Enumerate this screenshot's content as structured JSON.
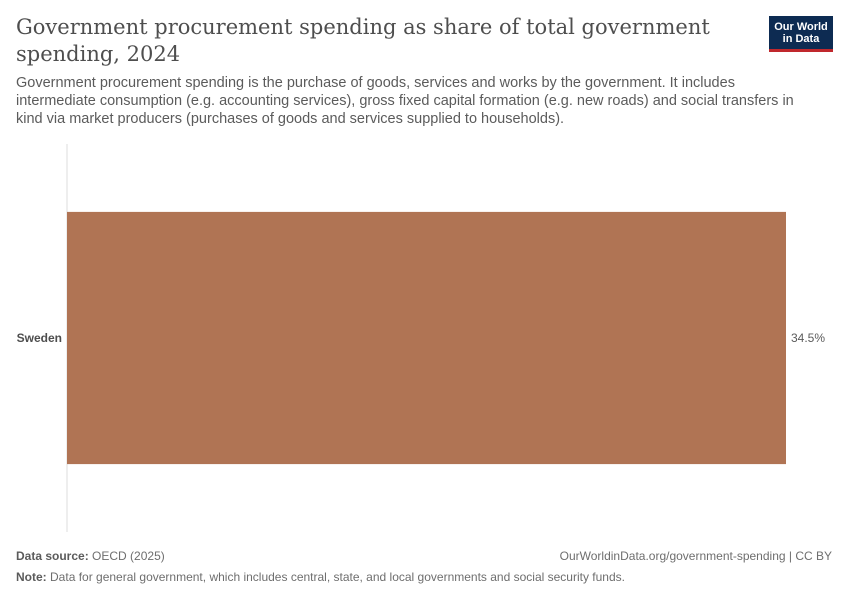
{
  "title": "Government procurement spending as share of total government spending, 2024",
  "subtitle": "Government procurement spending is the purchase of goods, services and works by the government. It includes intermediate consumption (e.g. accounting services), gross fixed capital formation (e.g. new roads) and social transfers in kind via market producers (purchases of goods and services supplied to households).",
  "logo": {
    "line1": "Our World",
    "line2": "in Data"
  },
  "footer": {
    "source_label": "Data source:",
    "source_value": "OECD (2025)",
    "url": "OurWorldinData.org/government-spending | CC BY",
    "note_label": "Note:",
    "note_value": "Data for general government, which includes central, state, and local governments and social security funds."
  },
  "chart_data": {
    "type": "bar",
    "orientation": "horizontal",
    "categories": [
      "Sweden"
    ],
    "values": [
      34.5
    ],
    "value_labels": [
      "34.5%"
    ],
    "xlim": [
      0,
      34.5
    ],
    "color": "#b07454",
    "grid": false
  }
}
